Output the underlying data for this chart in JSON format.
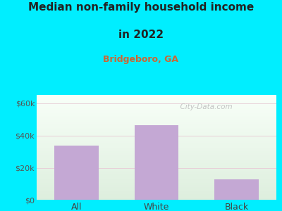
{
  "categories": [
    "All",
    "White",
    "Black"
  ],
  "values": [
    34000,
    46500,
    13000
  ],
  "bar_color": "#c4a8d4",
  "title_line1": "Median non-family household income",
  "title_line2": "in 2022",
  "subtitle": "Bridgeboro, GA",
  "subtitle_color": "#cc6633",
  "title_color": "#222222",
  "bg_color": "#00eeff",
  "plot_bg_top_left": "#ddeedd",
  "plot_bg_bottom_right": "#f8fff8",
  "yticks": [
    0,
    20000,
    40000,
    60000
  ],
  "ytick_labels": [
    "$0",
    "$20k",
    "$40k",
    "$60k"
  ],
  "ylim": [
    0,
    65000
  ],
  "grid_color": "#e8d0d8",
  "watermark": "  City-Data.com"
}
